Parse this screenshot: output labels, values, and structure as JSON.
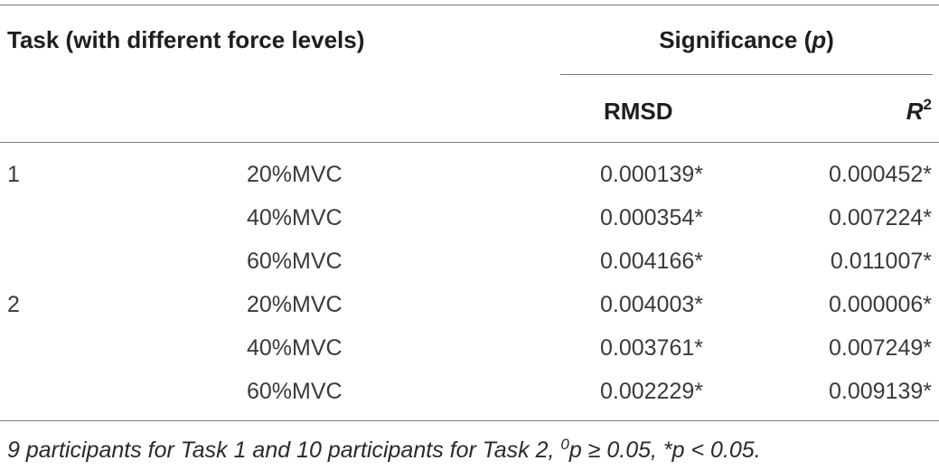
{
  "table": {
    "header": {
      "task_label": "Task (with different force levels)",
      "group_label_text": "Significance (",
      "group_label_italic": "p",
      "group_label_close": ")",
      "col_rmsd": "RMSD",
      "col_r2_base": "R",
      "col_r2_sup": "2"
    },
    "rows": [
      {
        "task": "1",
        "level": "20%MVC",
        "rmsd": "0.000139*",
        "r2": "0.000452*"
      },
      {
        "task": "",
        "level": "40%MVC",
        "rmsd": "0.000354*",
        "r2": "0.007224*"
      },
      {
        "task": "",
        "level": "60%MVC",
        "rmsd": "0.004166*",
        "r2": "0.011007*"
      },
      {
        "task": "2",
        "level": "20%MVC",
        "rmsd": "0.004003*",
        "r2": "0.000006*"
      },
      {
        "task": "",
        "level": "40%MVC",
        "rmsd": "0.003761*",
        "r2": "0.007249*"
      },
      {
        "task": "",
        "level": "60%MVC",
        "rmsd": "0.002229*",
        "r2": "0.009139*"
      }
    ],
    "footnote": {
      "part1": "9 participants for Task 1 and 10 participants for Task 2, ",
      "sup": "0",
      "part2": "p ≥ 0.05, *p < 0.05."
    }
  }
}
